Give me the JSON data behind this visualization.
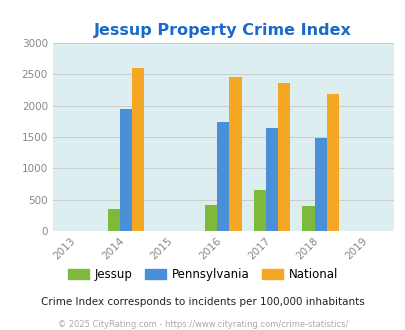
{
  "title": "Jessup Property Crime Index",
  "years": [
    2014,
    2016,
    2017,
    2018
  ],
  "x_ticks": [
    2013,
    2014,
    2015,
    2016,
    2017,
    2018,
    2019
  ],
  "jessup": [
    350,
    410,
    660,
    395
  ],
  "pennsylvania": [
    1950,
    1740,
    1640,
    1490
  ],
  "national": [
    2600,
    2460,
    2360,
    2185
  ],
  "jessup_color": "#7db93b",
  "pennsylvania_color": "#4a90d9",
  "national_color": "#f5a623",
  "bg_color": "#ddeef0",
  "ylim": [
    0,
    3000
  ],
  "yticks": [
    0,
    500,
    1000,
    1500,
    2000,
    2500,
    3000
  ],
  "bar_width": 0.25,
  "legend_labels": [
    "Jessup",
    "Pennsylvania",
    "National"
  ],
  "note": "Crime Index corresponds to incidents per 100,000 inhabitants",
  "copyright": "© 2025 CityRating.com - https://www.cityrating.com/crime-statistics/",
  "title_color": "#1a6ac9",
  "note_color": "#222222",
  "copyright_color": "#aaaaaa",
  "tick_color": "#888888"
}
